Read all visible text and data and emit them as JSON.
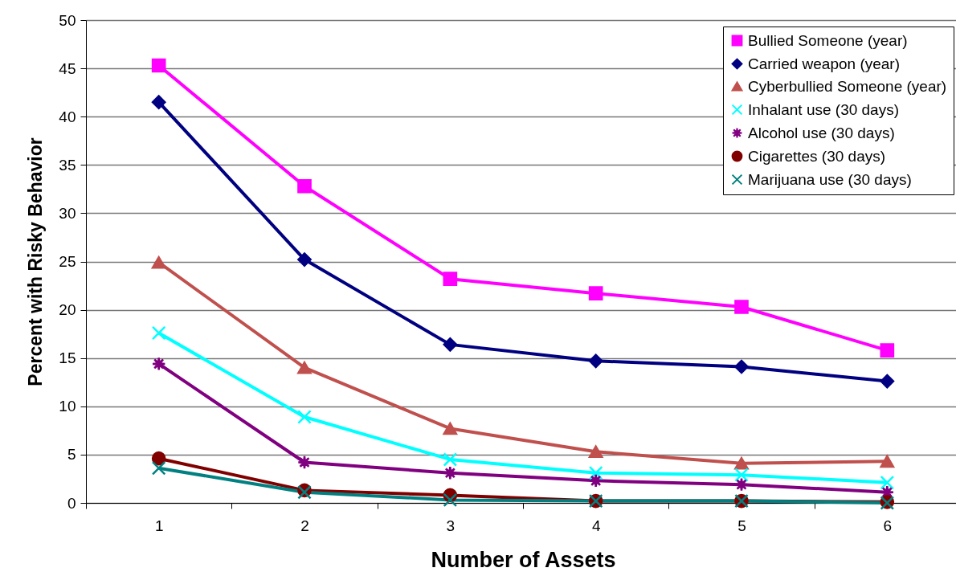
{
  "chart_data": {
    "type": "line",
    "xlabel": "Number of Assets",
    "ylabel": "Percent with Risky Behavior",
    "categories": [
      "1",
      "2",
      "3",
      "4",
      "5",
      "6"
    ],
    "ylim": [
      0,
      50
    ],
    "yticks": [
      0,
      5,
      10,
      15,
      20,
      25,
      30,
      35,
      40,
      45,
      50
    ],
    "grid": "y",
    "legend": "top right",
    "series": [
      {
        "name": "Bullied Someone (year)",
        "color": "#ff00ff",
        "marker": "square",
        "values": [
          45.3,
          32.8,
          23.2,
          21.7,
          20.3,
          15.8
        ]
      },
      {
        "name": "Carried weapon (year)",
        "color": "#000080",
        "marker": "diamond",
        "values": [
          41.5,
          25.2,
          16.4,
          14.7,
          14.1,
          12.6
        ]
      },
      {
        "name": "Cyberbullied Someone (year)",
        "color": "#c0504d",
        "marker": "triangle",
        "values": [
          24.9,
          14.0,
          7.7,
          5.3,
          4.1,
          4.3
        ]
      },
      {
        "name": "Inhalant use (30 days)",
        "color": "#00ffff",
        "marker": "cross",
        "values": [
          17.6,
          8.9,
          4.5,
          3.1,
          2.9,
          2.1
        ]
      },
      {
        "name": "Alcohol use (30 days)",
        "color": "#800080",
        "marker": "star",
        "values": [
          14.4,
          4.2,
          3.1,
          2.3,
          1.9,
          1.1
        ]
      },
      {
        "name": "Cigarettes (30 days)",
        "color": "#800000",
        "marker": "circle",
        "values": [
          4.6,
          1.3,
          0.8,
          0.2,
          0.2,
          0.1
        ]
      },
      {
        "name": "Marijuana use (30 days)",
        "color": "#008080",
        "marker": "cross",
        "values": [
          3.6,
          1.1,
          0.3,
          0.2,
          0.2,
          0.0
        ]
      }
    ]
  }
}
